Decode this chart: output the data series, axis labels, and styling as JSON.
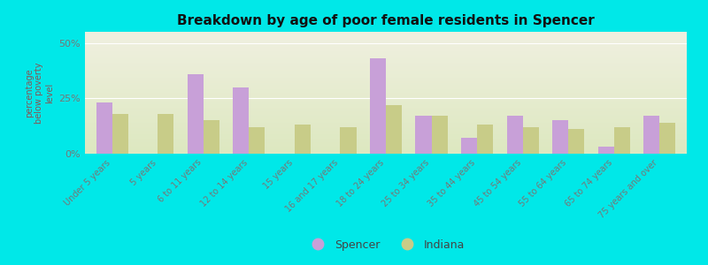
{
  "title": "Breakdown by age of poor female residents in Spencer",
  "ylabel": "percentage\nbelow poverty\nlevel",
  "categories": [
    "Under 5 years",
    "5 years",
    "6 to 11 years",
    "12 to 14 years",
    "15 years",
    "16 and 17 years",
    "18 to 24 years",
    "25 to 34 years",
    "35 to 44 years",
    "45 to 54 years",
    "55 to 64 years",
    "65 to 74 years",
    "75 years and over"
  ],
  "spencer": [
    23,
    0,
    36,
    30,
    0,
    0,
    43,
    17,
    7,
    17,
    15,
    3,
    17
  ],
  "indiana": [
    18,
    18,
    15,
    12,
    13,
    12,
    22,
    17,
    13,
    12,
    11,
    12,
    14
  ],
  "spencer_color": "#c8a0d8",
  "indiana_color": "#c8cc88",
  "background_top": "#f0f0e0",
  "background_bottom": "#dde8c0",
  "bar_width": 0.35,
  "ylim": [
    0,
    55
  ],
  "yticks": [
    0,
    25,
    50
  ],
  "ytick_labels": [
    "0%",
    "25%",
    "50%"
  ],
  "bg_outer": "#00e8e8",
  "legend_spencer": "Spencer",
  "legend_indiana": "Indiana"
}
